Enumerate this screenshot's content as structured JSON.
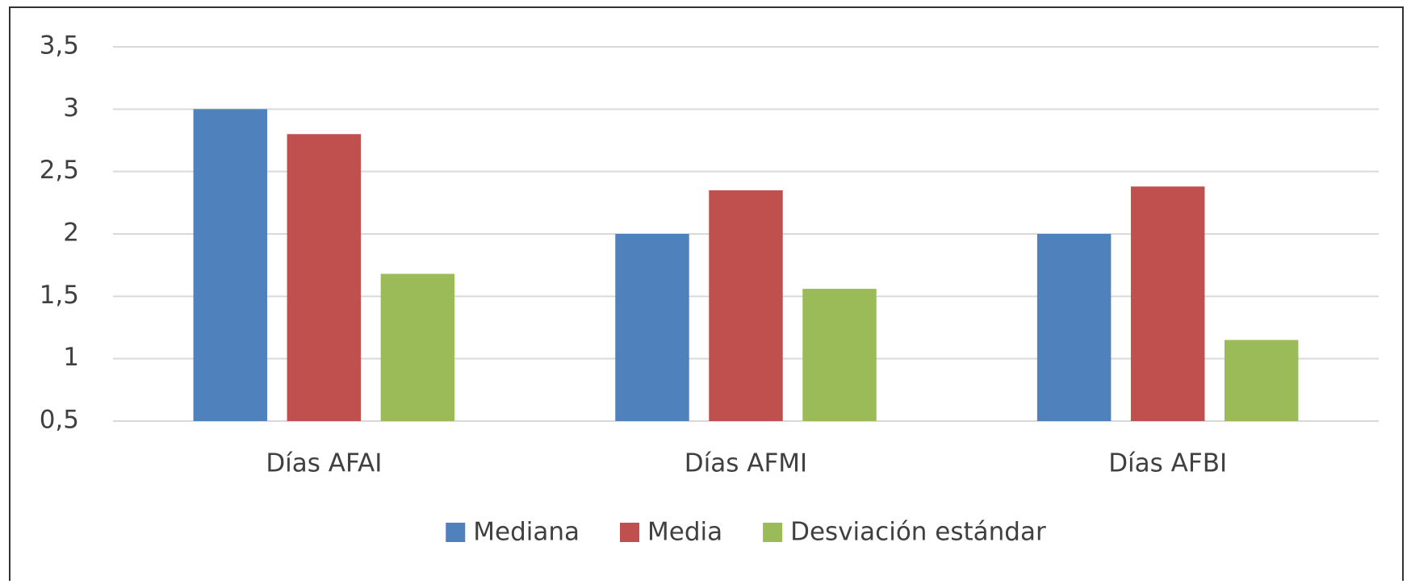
{
  "chart_data": {
    "type": "bar",
    "categories": [
      "Días AFAI",
      "Días AFMI",
      "Días AFBI"
    ],
    "series": [
      {
        "name": "Mediana",
        "color": "#4f81bd",
        "values": [
          3,
          2,
          2
        ]
      },
      {
        "name": "Media",
        "color": "#c0504d",
        "values": [
          2.8,
          2.35,
          2.38
        ]
      },
      {
        "name": "Desviación estándar",
        "color": "#9bbb59",
        "values": [
          1.68,
          1.56,
          1.15
        ]
      }
    ],
    "ylim": [
      0.5,
      3.5
    ],
    "yticks": [
      {
        "value": 0.5,
        "label": "0,5"
      },
      1,
      {
        "value": 1.5,
        "label": "1,5"
      },
      2,
      {
        "value": 2.5,
        "label": "2,5"
      },
      3,
      {
        "value": 3.5,
        "label": "3,5"
      }
    ],
    "grid": true,
    "legend": "bottom"
  }
}
